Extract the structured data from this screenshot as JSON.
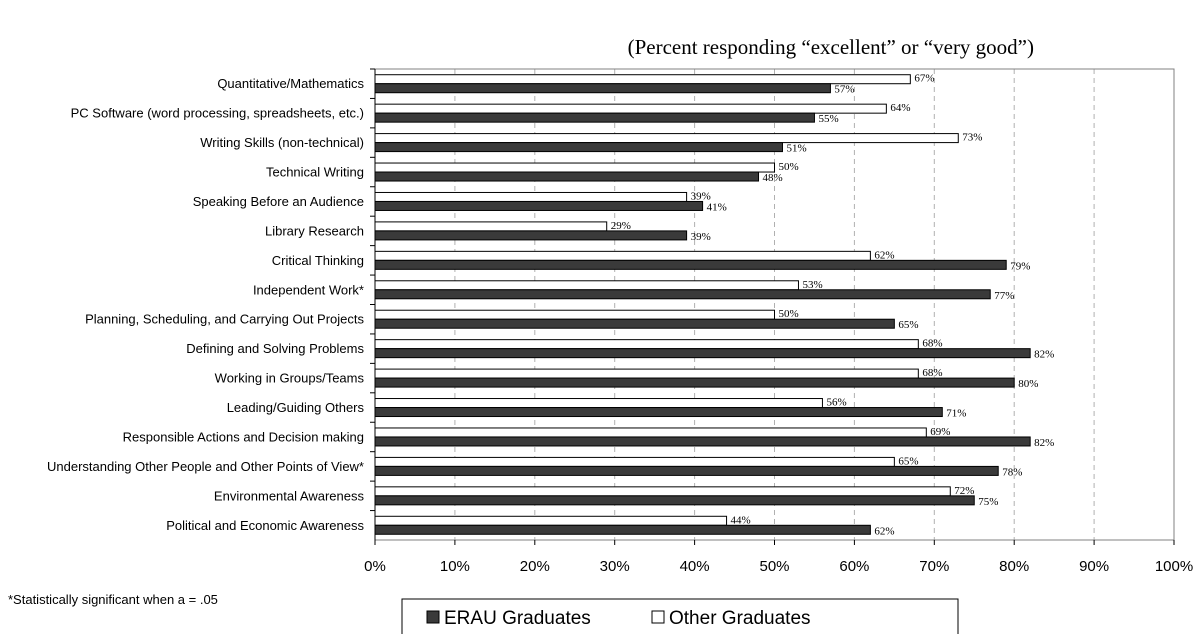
{
  "chart_data": {
    "type": "bar",
    "orientation": "horizontal",
    "subtitle": "(Percent responding “excellent” or “very good”)",
    "categories": [
      "Quantitative/Mathematics",
      "PC Software (word processing, spreadsheets, etc.)",
      "Writing Skills (non-technical)",
      "Technical Writing",
      "Speaking Before an Audience",
      "Library Research",
      "Critical Thinking",
      "Independent Work*",
      "Planning, Scheduling, and Carrying Out Projects",
      "Defining and Solving Problems",
      "Working in Groups/Teams",
      "Leading/Guiding Others",
      "Responsible Actions and Decision making",
      "Understanding Other People and Other Points of View*",
      "Environmental Awareness",
      "Political and Economic Awareness"
    ],
    "series": [
      {
        "name": "ERAU Graduates",
        "color": "#3a3a3a",
        "values": [
          57,
          55,
          51,
          48,
          41,
          39,
          79,
          77,
          65,
          82,
          80,
          71,
          82,
          78,
          75,
          62
        ],
        "labels": [
          "57%",
          "55%",
          "51%",
          "48%",
          "41%",
          "39%",
          "79%",
          "77%",
          "65%",
          "82%",
          "80%",
          "71%",
          "82%",
          "78%",
          "75%",
          "62%"
        ]
      },
      {
        "name": "Other Graduates",
        "color": "#ffffff",
        "values": [
          67,
          64,
          73,
          50,
          39,
          29,
          62,
          53,
          50,
          68,
          68,
          56,
          69,
          65,
          72,
          44
        ],
        "labels": [
          "67%",
          "64%",
          "73%",
          "50%",
          "39%",
          "29%",
          "62%",
          "53%",
          "50%",
          "68%",
          "68%",
          "56%",
          "69%",
          "65%",
          "72%",
          "44%"
        ]
      }
    ],
    "xlim": [
      0,
      100
    ],
    "xticks": [
      "0%",
      "10%",
      "20%",
      "30%",
      "40%",
      "50%",
      "60%",
      "70%",
      "80%",
      "90%",
      "100%"
    ],
    "grid": "vertical dashed",
    "legend_position": "bottom",
    "footnote": "*Statistically significant when a = .05"
  }
}
